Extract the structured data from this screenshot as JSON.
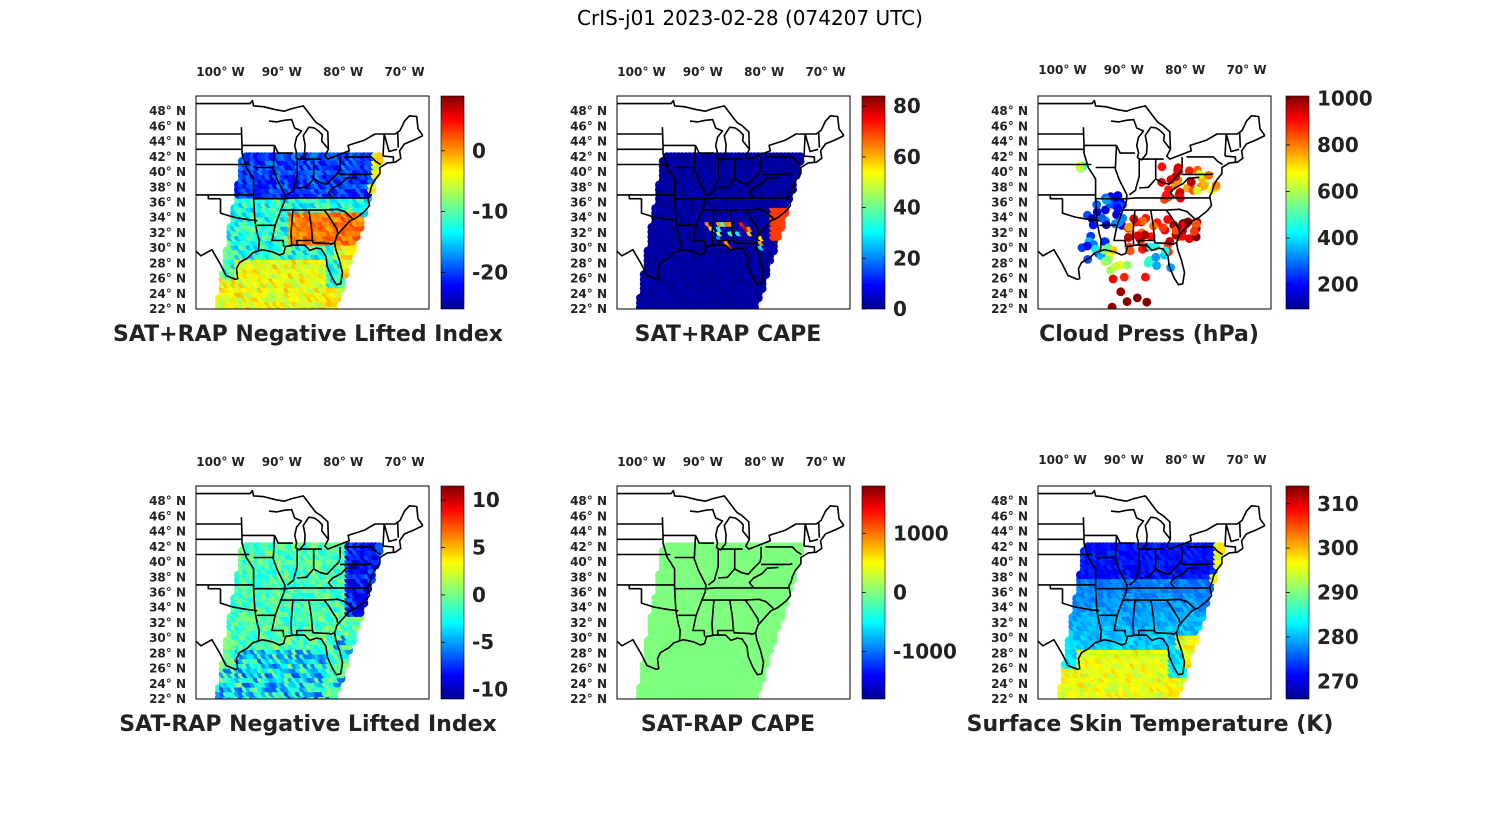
{
  "title": "CrIS-j01 2023-02-28 (074207 UTC)",
  "colors": {
    "background": "#ffffff",
    "frame": "#000000",
    "label_text": "#222222",
    "land_background": "#ffffff"
  },
  "map_axes": {
    "lon_ticks": [
      "100° W",
      "90° W",
      "80° W",
      "70° W"
    ],
    "lon_values": [
      -100,
      -90,
      -80,
      -70
    ],
    "lat_ticks": [
      "48° N",
      "46° N",
      "44° N",
      "42° N",
      "40° N",
      "38° N",
      "36° N",
      "34° N",
      "32° N",
      "30° N",
      "28° N",
      "26° N",
      "24° N",
      "22° N"
    ],
    "lat_values": [
      48,
      46,
      44,
      42,
      40,
      38,
      36,
      34,
      32,
      30,
      28,
      26,
      24,
      22
    ]
  },
  "panels": [
    {
      "id": "sat-rap-nli",
      "title": "SAT+RAP Negative Lifted Index",
      "colorbar": {
        "ticks": [
          "0",
          "-10",
          "-20"
        ],
        "tick_values": [
          0,
          -10,
          -20
        ],
        "range": [
          -26,
          9
        ],
        "colormap": "jet"
      },
      "field": "nli_plus"
    },
    {
      "id": "sat-rap-cape",
      "title": "SAT+RAP CAPE",
      "colorbar": {
        "ticks": [
          "80",
          "60",
          "40",
          "20",
          "0"
        ],
        "tick_values": [
          80,
          60,
          40,
          20,
          0
        ],
        "range": [
          0,
          84
        ],
        "colormap": "jet"
      },
      "field": "cape_plus"
    },
    {
      "id": "cloud-press",
      "title": "Cloud Press (hPa)",
      "colorbar": {
        "ticks": [
          "1000",
          "800",
          "600",
          "400",
          "200"
        ],
        "tick_values": [
          1000,
          800,
          600,
          400,
          200
        ],
        "range": [
          95,
          1010
        ],
        "colormap": "jet"
      },
      "field": "cloud_press"
    },
    {
      "id": "sat-minus-rap-nli",
      "title": "SAT-RAP Negative Lifted Index",
      "colorbar": {
        "ticks": [
          "10",
          "5",
          "0",
          "-5",
          "-10"
        ],
        "tick_values": [
          10,
          5,
          0,
          -5,
          -10
        ],
        "range": [
          -11,
          11.5
        ],
        "colormap": "jet"
      },
      "field": "nli_minus"
    },
    {
      "id": "sat-minus-rap-cape",
      "title": "SAT-RAP CAPE",
      "colorbar": {
        "ticks": [
          "1000",
          "0",
          "-1000"
        ],
        "tick_values": [
          1000,
          0,
          -1000
        ],
        "range": [
          -1800,
          1800
        ],
        "colormap": "jet"
      },
      "field": "cape_minus"
    },
    {
      "id": "skin-temp",
      "title": "Surface Skin Temperature (K)",
      "colorbar": {
        "ticks": [
          "310",
          "300",
          "290",
          "280",
          "270"
        ],
        "tick_values": [
          310,
          300,
          290,
          280,
          270
        ],
        "range": [
          266,
          314
        ],
        "colormap": "jet"
      },
      "field": "skin_temp"
    }
  ]
}
